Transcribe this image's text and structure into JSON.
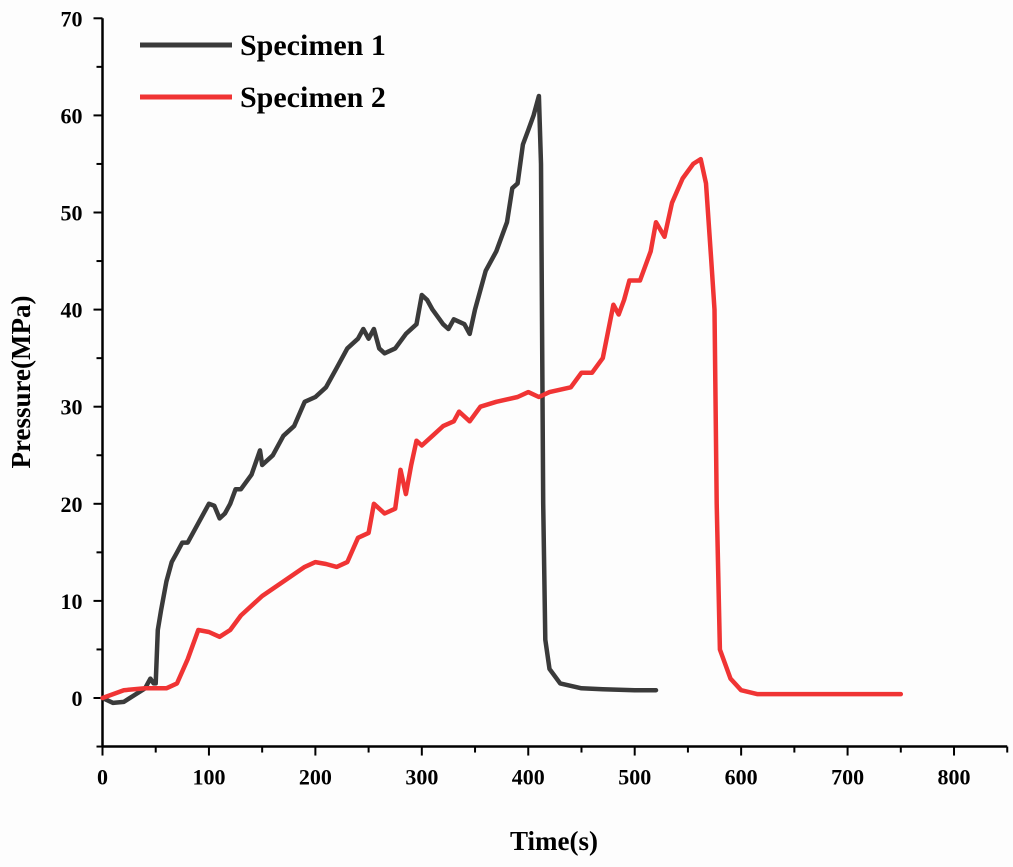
{
  "chart_data": {
    "type": "line",
    "title": "",
    "xlabel": "Time(s)",
    "ylabel": "Pressure(MPa)",
    "xlim": [
      0,
      850
    ],
    "ylim": [
      -5,
      70
    ],
    "xticks": [
      0,
      100,
      200,
      300,
      400,
      500,
      600,
      700,
      800
    ],
    "yticks": [
      0,
      10,
      20,
      30,
      40,
      50,
      60,
      70
    ],
    "grid": false,
    "legend_position": "top-left",
    "series": [
      {
        "name": "Specimen 1",
        "color": "#3a3a3a",
        "points": [
          [
            0,
            0
          ],
          [
            10,
            -0.5
          ],
          [
            20,
            -0.4
          ],
          [
            30,
            0.3
          ],
          [
            40,
            1
          ],
          [
            45,
            2
          ],
          [
            48,
            1.5
          ],
          [
            50,
            1.5
          ],
          [
            52,
            7
          ],
          [
            55,
            9
          ],
          [
            60,
            12
          ],
          [
            65,
            14
          ],
          [
            70,
            15
          ],
          [
            75,
            16
          ],
          [
            80,
            16
          ],
          [
            90,
            18
          ],
          [
            100,
            20
          ],
          [
            105,
            19.8
          ],
          [
            110,
            18.5
          ],
          [
            115,
            19
          ],
          [
            120,
            20
          ],
          [
            125,
            21.5
          ],
          [
            130,
            21.5
          ],
          [
            140,
            23
          ],
          [
            148,
            25.5
          ],
          [
            150,
            24
          ],
          [
            160,
            25
          ],
          [
            170,
            27
          ],
          [
            180,
            28
          ],
          [
            190,
            30.5
          ],
          [
            200,
            31
          ],
          [
            210,
            32
          ],
          [
            220,
            34
          ],
          [
            230,
            36
          ],
          [
            240,
            37
          ],
          [
            245,
            38
          ],
          [
            250,
            37
          ],
          [
            255,
            38
          ],
          [
            260,
            36
          ],
          [
            265,
            35.5
          ],
          [
            275,
            36
          ],
          [
            285,
            37.5
          ],
          [
            295,
            38.5
          ],
          [
            300,
            41.5
          ],
          [
            305,
            41
          ],
          [
            310,
            40
          ],
          [
            320,
            38.5
          ],
          [
            325,
            38
          ],
          [
            330,
            39
          ],
          [
            340,
            38.5
          ],
          [
            345,
            37.5
          ],
          [
            350,
            40
          ],
          [
            360,
            44
          ],
          [
            370,
            46
          ],
          [
            380,
            49
          ],
          [
            385,
            52.5
          ],
          [
            390,
            53
          ],
          [
            395,
            57
          ],
          [
            400,
            58.5
          ],
          [
            405,
            60
          ],
          [
            410,
            62
          ],
          [
            412,
            55
          ],
          [
            414,
            20
          ],
          [
            416,
            6
          ],
          [
            420,
            3
          ],
          [
            430,
            1.5
          ],
          [
            450,
            1
          ],
          [
            470,
            0.9
          ],
          [
            500,
            0.8
          ],
          [
            520,
            0.8
          ]
        ]
      },
      {
        "name": "Specimen 2",
        "color": "#f03434",
        "points": [
          [
            0,
            0
          ],
          [
            20,
            0.8
          ],
          [
            40,
            1
          ],
          [
            60,
            1
          ],
          [
            70,
            1.5
          ],
          [
            80,
            4
          ],
          [
            90,
            7
          ],
          [
            100,
            6.8
          ],
          [
            110,
            6.3
          ],
          [
            120,
            7
          ],
          [
            130,
            8.5
          ],
          [
            150,
            10.5
          ],
          [
            170,
            12
          ],
          [
            190,
            13.5
          ],
          [
            200,
            14
          ],
          [
            210,
            13.8
          ],
          [
            220,
            13.5
          ],
          [
            230,
            14
          ],
          [
            240,
            16.5
          ],
          [
            250,
            17
          ],
          [
            255,
            20
          ],
          [
            265,
            19
          ],
          [
            275,
            19.5
          ],
          [
            280,
            23.5
          ],
          [
            285,
            21
          ],
          [
            290,
            24
          ],
          [
            295,
            26.5
          ],
          [
            300,
            26
          ],
          [
            310,
            27
          ],
          [
            320,
            28
          ],
          [
            330,
            28.5
          ],
          [
            335,
            29.5
          ],
          [
            345,
            28.5
          ],
          [
            355,
            30
          ],
          [
            370,
            30.5
          ],
          [
            390,
            31
          ],
          [
            400,
            31.5
          ],
          [
            410,
            31
          ],
          [
            420,
            31.5
          ],
          [
            440,
            32
          ],
          [
            450,
            33.5
          ],
          [
            460,
            33.5
          ],
          [
            470,
            35
          ],
          [
            480,
            40.5
          ],
          [
            485,
            39.5
          ],
          [
            490,
            41
          ],
          [
            495,
            43
          ],
          [
            505,
            43
          ],
          [
            515,
            46
          ],
          [
            520,
            49
          ],
          [
            528,
            47.5
          ],
          [
            535,
            51
          ],
          [
            545,
            53.5
          ],
          [
            555,
            55
          ],
          [
            562,
            55.5
          ],
          [
            567,
            53
          ],
          [
            572,
            45
          ],
          [
            575,
            40
          ],
          [
            577,
            20
          ],
          [
            580,
            5
          ],
          [
            590,
            2
          ],
          [
            600,
            0.8
          ],
          [
            615,
            0.4
          ],
          [
            650,
            0.4
          ],
          [
            700,
            0.4
          ],
          [
            750,
            0.4
          ]
        ]
      }
    ]
  }
}
